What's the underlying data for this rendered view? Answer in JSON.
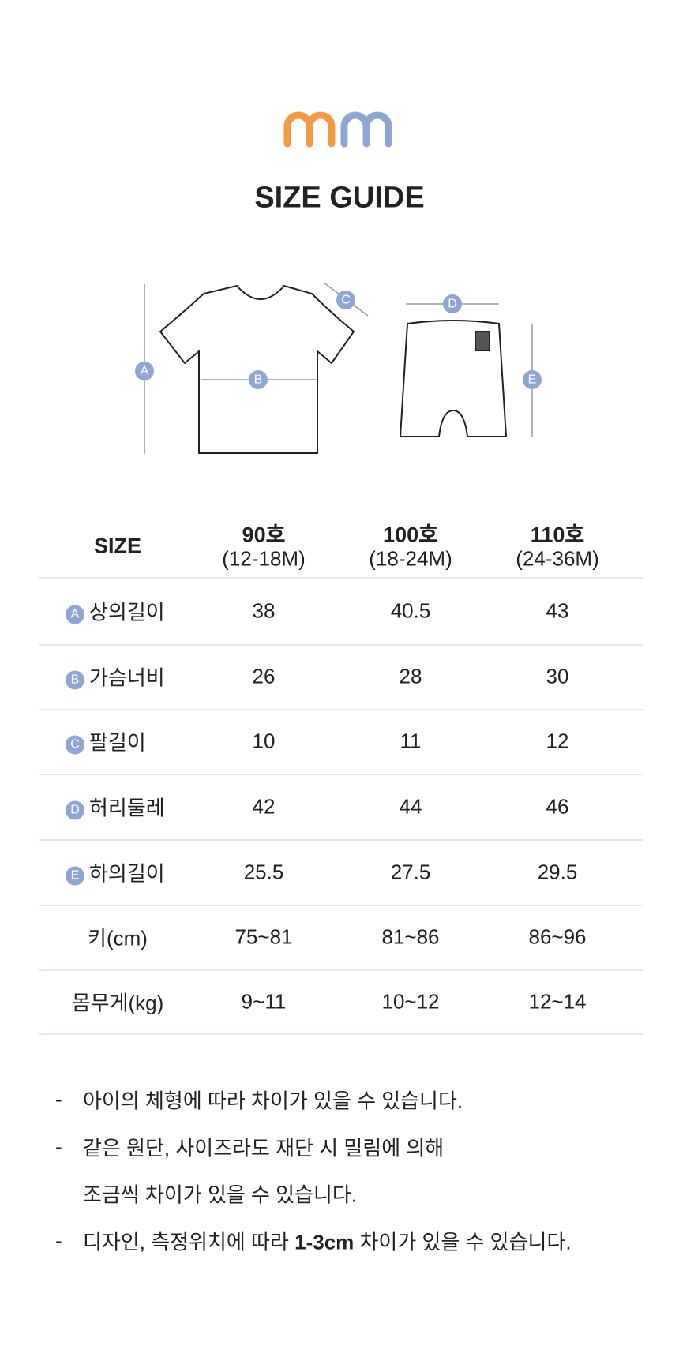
{
  "header": {
    "title": "SIZE GUIDE"
  },
  "diagram": {
    "top": [
      "A",
      "B",
      "C"
    ],
    "bottom": [
      "D",
      "E"
    ]
  },
  "table": {
    "corner": "SIZE",
    "columns": [
      {
        "size": "90호",
        "months": "(12-18M)"
      },
      {
        "size": "100호",
        "months": "(18-24M)"
      },
      {
        "size": "110호",
        "months": "(24-36M)"
      }
    ],
    "rows": [
      {
        "badge": "A",
        "label": "상의길이",
        "cells": [
          "38",
          "40.5",
          "43"
        ]
      },
      {
        "badge": "B",
        "label": "가슴너비",
        "cells": [
          "26",
          "28",
          "30"
        ]
      },
      {
        "badge": "C",
        "label": "팔길이",
        "cells": [
          "10",
          "11",
          "12"
        ]
      },
      {
        "badge": "D",
        "label": "허리둘레",
        "cells": [
          "42",
          "44",
          "46"
        ]
      },
      {
        "badge": "E",
        "label": "하의길이",
        "cells": [
          "25.5",
          "27.5",
          "29.5"
        ]
      },
      {
        "label": "키(cm)",
        "cells": [
          "75~81",
          "81~86",
          "86~96"
        ]
      },
      {
        "label": "몸무게(kg)",
        "cells": [
          "9~11",
          "10~12",
          "12~14"
        ]
      }
    ]
  },
  "notes": [
    {
      "dash": "-",
      "lines": [
        "아이의 체형에 따라 차이가 있을 수 있습니다."
      ]
    },
    {
      "dash": "-",
      "lines": [
        "같은 원단, 사이즈라도 재단 시 밀림에 의해",
        "조금씩 차이가 있을 수 있습니다."
      ]
    },
    {
      "dash": "-",
      "lines": [
        "디자인, 측정위치에 따라 "
      ],
      "bold": "1-3cm",
      "after": " 차이가 있을 수 있습니다."
    }
  ]
}
